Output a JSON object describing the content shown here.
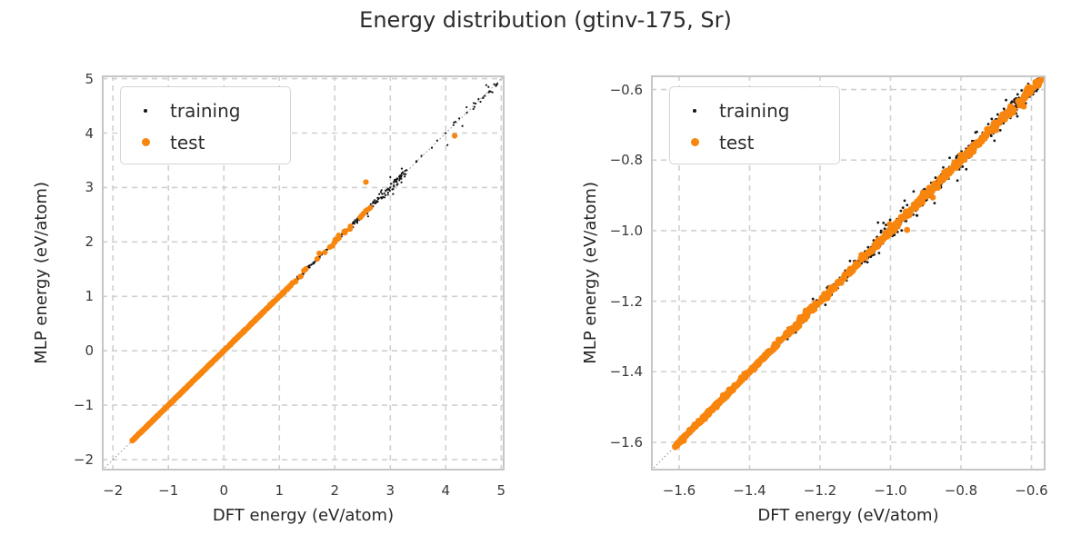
{
  "figure": {
    "title": "Energy distribution (gtinv-175, Sr)",
    "background_color": "#ffffff",
    "text_color": "#262626",
    "grid_color": "#d0d0d0",
    "frame_color": "#c6c6c6",
    "diagonal_color": "#909090",
    "training_color": "#141414",
    "test_color": "#f8850d"
  },
  "legend": {
    "training_label": "training",
    "test_label": "test"
  },
  "chart_data": [
    {
      "type": "scatter",
      "panel": "left",
      "xlabel": "DFT energy (eV/atom)",
      "ylabel": "MLP energy (eV/atom)",
      "xlim": [
        -2.2,
        5.06
      ],
      "ylim": [
        -2.2,
        5.06
      ],
      "xticks": [
        -2,
        -1,
        0,
        1,
        2,
        3,
        4,
        5
      ],
      "xtick_labels": [
        "−2",
        "−1",
        "0",
        "1",
        "2",
        "3",
        "4",
        "5"
      ],
      "yticks": [
        -2,
        -1,
        0,
        1,
        2,
        3,
        4,
        5
      ],
      "ytick_labels": [
        "−2",
        "−1",
        "0",
        "1",
        "2",
        "3",
        "4",
        "5"
      ],
      "grid": "dashed",
      "identity_line": true,
      "legend_position": "upper-left",
      "series": [
        {
          "name": "training",
          "color": "#141414",
          "marker_radius": 1.1,
          "seed": 7,
          "band": [
            {
              "x0": -1.653,
              "x1": 1.3,
              "n": 520,
              "noise": 0.006
            },
            {
              "x0": 1.3,
              "x1": 2.3,
              "n": 90,
              "noise": 0.015
            },
            {
              "x0": 2.3,
              "x1": 2.8,
              "n": 55,
              "noise": 0.03
            },
            {
              "x0": 2.8,
              "x1": 3.3,
              "n": 60,
              "noise": 0.05
            },
            {
              "x0": 3.45,
              "x1": 4.3,
              "n": 10,
              "noise": 0.025
            },
            {
              "x0": 4.35,
              "x1": 4.96,
              "n": 20,
              "noise": 0.035
            }
          ],
          "outliers": [
            [
              3.0,
              3.19
            ],
            [
              3.05,
              2.88
            ],
            [
              2.6,
              2.47
            ],
            [
              4.3,
              4.13
            ],
            [
              4.73,
              4.88
            ],
            [
              4.84,
              4.75
            ],
            [
              4.03,
              3.78
            ]
          ]
        },
        {
          "name": "test",
          "color": "#f8850d",
          "marker_radius": 3.1,
          "seed": 13,
          "band": [
            {
              "x0": -1.653,
              "x1": 0.8,
              "n": 470,
              "noise": 0.004
            },
            {
              "x0": 0.8,
              "x1": 1.25,
              "n": 45,
              "noise": 0.006
            },
            {
              "x0": 1.25,
              "x1": 2.65,
              "n": 26,
              "noise": 0.012
            }
          ],
          "outliers": [
            [
              2.56,
              3.1
            ],
            [
              4.16,
              3.95
            ],
            [
              1.72,
              1.79
            ],
            [
              2.07,
              2.12
            ]
          ]
        }
      ]
    },
    {
      "type": "scatter",
      "panel": "right",
      "xlabel": "DFT energy (eV/atom)",
      "ylabel": "MLP energy (eV/atom)",
      "xlim": [
        -1.68,
        -0.56
      ],
      "ylim": [
        -1.68,
        -0.56
      ],
      "xticks": [
        -1.6,
        -1.4,
        -1.2,
        -1.0,
        -0.8,
        -0.6
      ],
      "xtick_labels": [
        "−1.6",
        "−1.4",
        "−1.2",
        "−1.0",
        "−0.8",
        "−0.6"
      ],
      "yticks": [
        -1.6,
        -1.4,
        -1.2,
        -1.0,
        -0.8,
        -0.6
      ],
      "ytick_labels": [
        "−1.6",
        "−1.4",
        "−1.2",
        "−1.0",
        "−0.8",
        "−0.6"
      ],
      "grid": "dashed",
      "identity_line": true,
      "legend_position": "upper-left",
      "series": [
        {
          "name": "training",
          "color": "#141414",
          "marker_radius": 1.4,
          "seed": 21,
          "band": [
            {
              "x0": -1.612,
              "x1": -1.3,
              "n": 240,
              "noise": 0.004
            },
            {
              "x0": -1.3,
              "x1": -1.08,
              "n": 130,
              "noise": 0.009
            },
            {
              "x0": -1.08,
              "x1": -0.88,
              "n": 140,
              "noise": 0.014
            },
            {
              "x0": -0.88,
              "x1": -0.72,
              "n": 120,
              "noise": 0.012
            },
            {
              "x0": -0.72,
              "x1": -0.572,
              "n": 180,
              "noise": 0.01
            }
          ],
          "outliers": [
            [
              -0.81,
              -0.858
            ],
            [
              -0.785,
              -0.826
            ],
            [
              -0.755,
              -0.72
            ],
            [
              -1.02,
              -0.978
            ],
            [
              -0.875,
              -0.922
            ],
            [
              -0.705,
              -0.745
            ],
            [
              -0.672,
              -0.63
            ],
            [
              -0.64,
              -0.676
            ],
            [
              -1.115,
              -1.086
            ],
            [
              -0.96,
              -0.915
            ]
          ]
        },
        {
          "name": "test",
          "color": "#f8850d",
          "marker_radius": 3.4,
          "seed": 31,
          "band": [
            {
              "x0": -1.612,
              "x1": -1.32,
              "n": 300,
              "noise": 0.003
            },
            {
              "x0": -1.32,
              "x1": -1.0,
              "n": 190,
              "noise": 0.005
            },
            {
              "x0": -1.0,
              "x1": -0.572,
              "n": 260,
              "noise": 0.0055
            }
          ],
          "outliers": [
            [
              -0.953,
              -0.998
            ],
            [
              -1.002,
              -0.982
            ],
            [
              -0.88,
              -0.906
            ],
            [
              -0.622,
              -0.648
            ],
            [
              -0.8,
              -0.785
            ],
            [
              -0.7,
              -0.715
            ]
          ]
        }
      ]
    }
  ]
}
